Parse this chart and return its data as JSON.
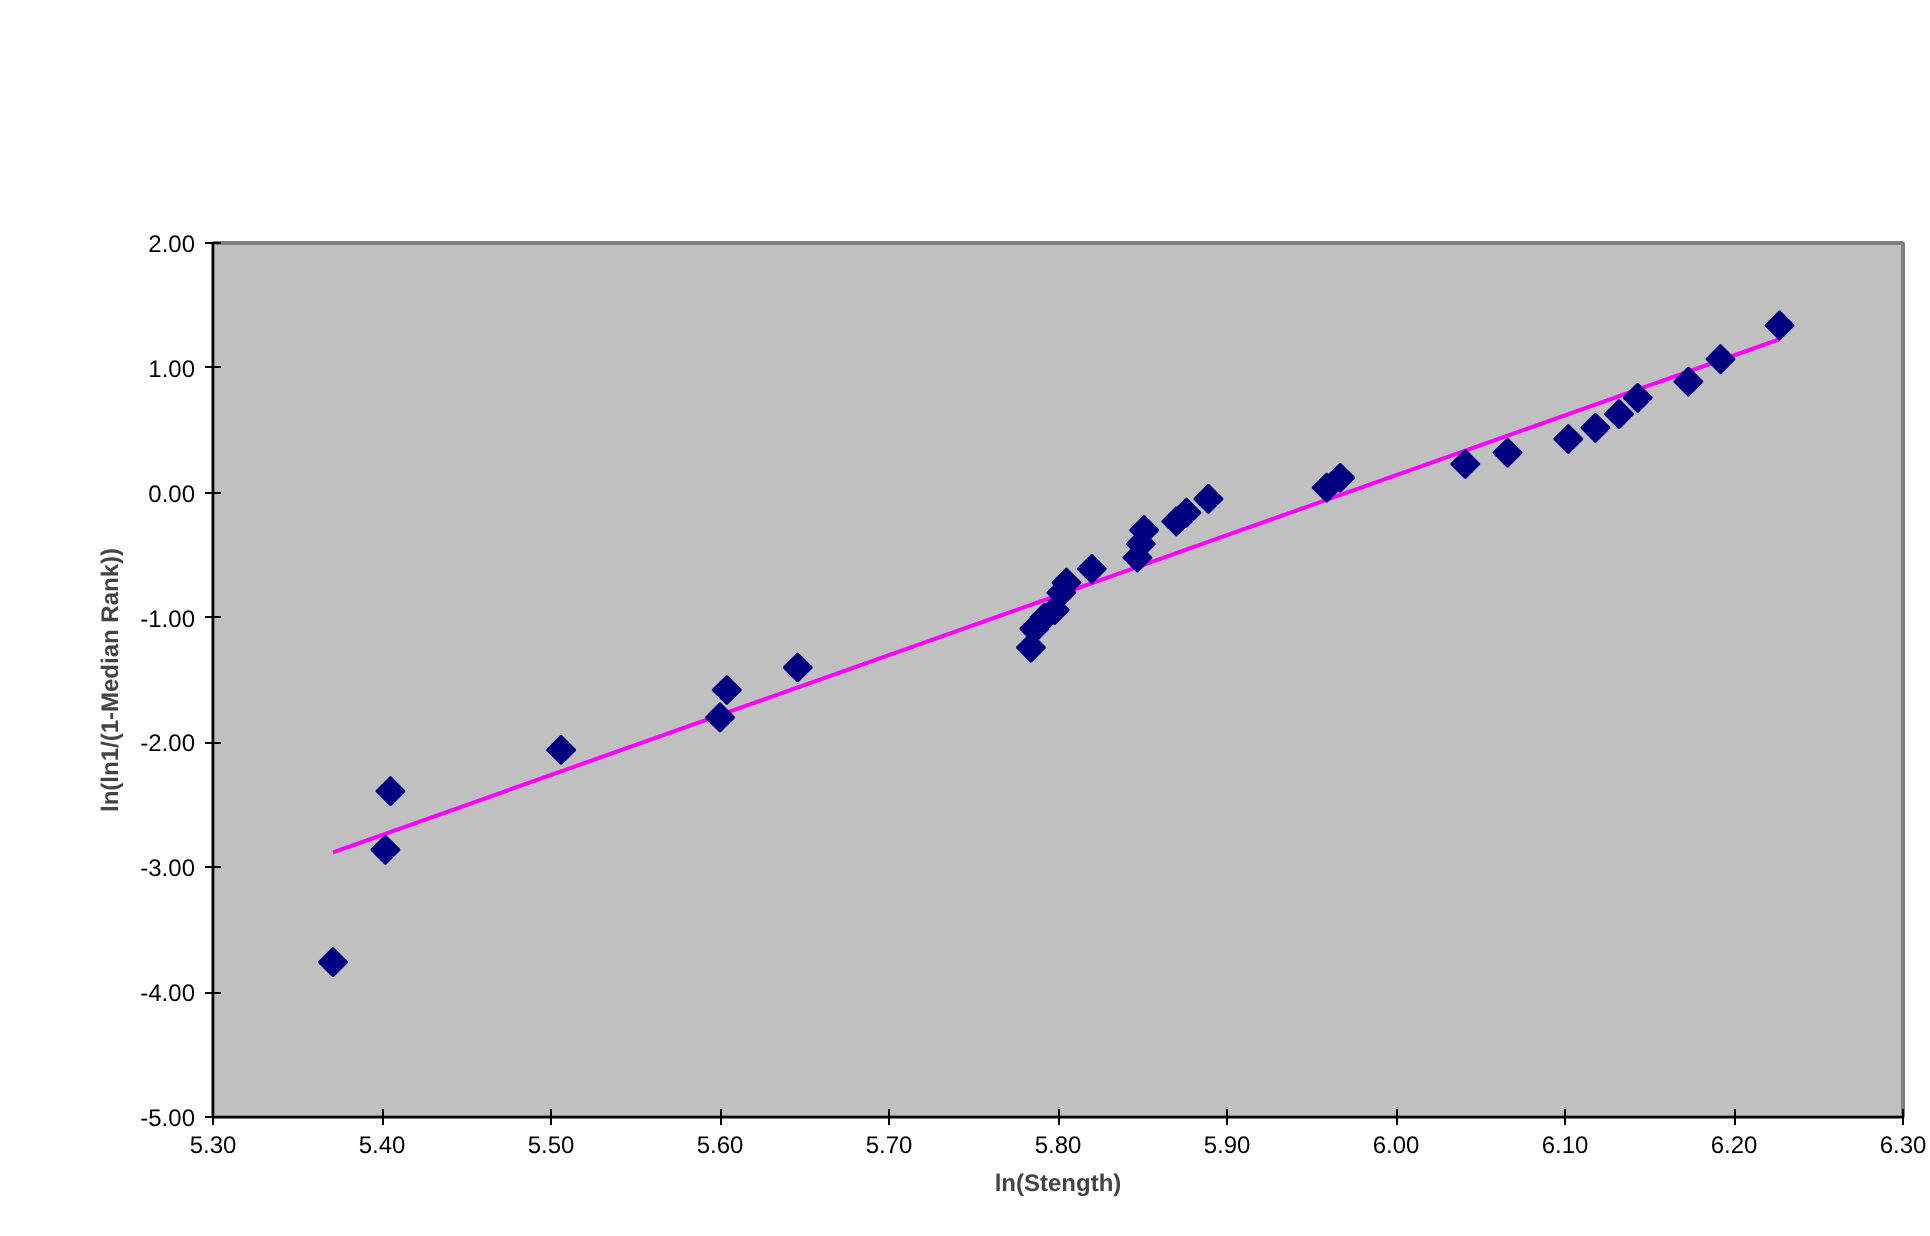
{
  "chart_data": {
    "type": "scatter",
    "xlabel": "ln(Stength)",
    "ylabel": "ln(ln1/(1-Median Rank))",
    "xlim": [
      5.3,
      6.3
    ],
    "ylim": [
      -5,
      2
    ],
    "xticks": [
      {
        "value": 5.3,
        "label": "5.30"
      },
      {
        "value": 5.4,
        "label": "5.40"
      },
      {
        "value": 5.5,
        "label": "5.50"
      },
      {
        "value": 5.6,
        "label": "5.60"
      },
      {
        "value": 5.7,
        "label": "5.70"
      },
      {
        "value": 5.8,
        "label": "5.80"
      },
      {
        "value": 5.9,
        "label": "5.90"
      },
      {
        "value": 6.0,
        "label": "6.00"
      },
      {
        "value": 6.1,
        "label": "6.10"
      },
      {
        "value": 6.2,
        "label": "6.20"
      },
      {
        "value": 6.3,
        "label": "6.30"
      }
    ],
    "yticks": [
      {
        "value": 2,
        "label": "2.00"
      },
      {
        "value": 1,
        "label": "1.00"
      },
      {
        "value": 0,
        "label": "0.00"
      },
      {
        "value": -1,
        "label": "-1.00"
      },
      {
        "value": -2,
        "label": "-2.00"
      },
      {
        "value": -3,
        "label": "-3.00"
      },
      {
        "value": -4,
        "label": "-4.00"
      },
      {
        "value": -5,
        "label": "-5.00"
      }
    ],
    "grid": false,
    "marker": "diamond",
    "series": [
      {
        "color": "#000080",
        "x": [
          5.371,
          5.402,
          5.405,
          5.506,
          5.6,
          5.604,
          5.646,
          5.784,
          5.786,
          5.792,
          5.798,
          5.802,
          5.805,
          5.82,
          5.847,
          5.849,
          5.851,
          5.87,
          5.876,
          5.889,
          5.959,
          5.967,
          6.041,
          6.066,
          6.102,
          6.118,
          6.132,
          6.143,
          6.173,
          6.192,
          6.227
        ],
        "values": [
          -3.76,
          -2.86,
          -2.39,
          -2.06,
          -1.8,
          -1.58,
          -1.4,
          -1.24,
          -1.09,
          -1.0,
          -0.94,
          -0.8,
          -0.72,
          -0.61,
          -0.52,
          -0.41,
          -0.3,
          -0.23,
          -0.16,
          -0.05,
          0.04,
          0.12,
          0.23,
          0.32,
          0.43,
          0.52,
          0.63,
          0.76,
          0.89,
          1.07,
          1.34
        ]
      },
      {
        "type": "line",
        "color": "#ff00ff",
        "marker": "none",
        "x": [
          5.371,
          6.227
        ],
        "values": [
          -2.88,
          1.23
        ]
      }
    ]
  }
}
